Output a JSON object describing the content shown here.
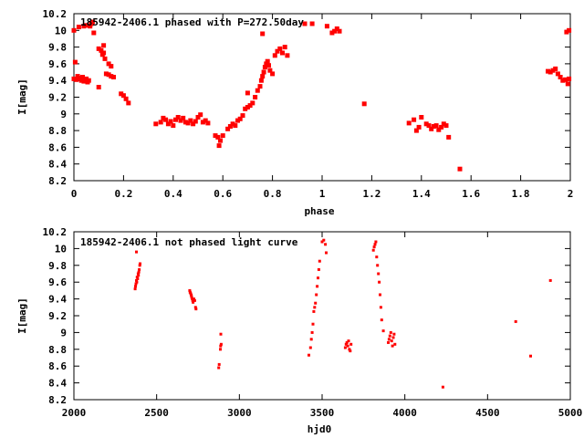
{
  "chart_data": [
    {
      "type": "scatter",
      "title": "185942-2406.1 phased with P=272.50day",
      "xlabel": "phase",
      "ylabel": "I[mag]",
      "xlim": [
        0,
        2
      ],
      "ylim": [
        10.2,
        8.2
      ],
      "y_inverted": true,
      "grid": false,
      "xticks": [
        "0",
        "0.2",
        "0.4",
        "0.6",
        "0.8",
        "1",
        "1.2",
        "1.4",
        "1.6",
        "1.8",
        "2"
      ],
      "yticks": [
        "8.2",
        "8.4",
        "8.6",
        "8.8",
        "9",
        "9.2",
        "9.4",
        "9.6",
        "9.8",
        "10",
        "10.2"
      ],
      "marker_color": "#ff0000",
      "points": [
        [
          0.0,
          9.42
        ],
        [
          0.01,
          9.41
        ],
        [
          0.02,
          9.43
        ],
        [
          0.03,
          9.4
        ],
        [
          0.04,
          9.39
        ],
        [
          0.05,
          9.42
        ],
        [
          0.06,
          9.4
        ],
        [
          0.015,
          9.45
        ],
        [
          0.035,
          9.44
        ],
        [
          0.055,
          9.38
        ],
        [
          0.005,
          9.62
        ],
        [
          0.0,
          10.0
        ],
        [
          0.02,
          10.04
        ],
        [
          0.04,
          10.05
        ],
        [
          0.05,
          10.06
        ],
        [
          0.065,
          10.05
        ],
        [
          0.07,
          10.08
        ],
        [
          0.075,
          10.1
        ],
        [
          0.08,
          9.97
        ],
        [
          0.1,
          9.78
        ],
        [
          0.11,
          9.76
        ],
        [
          0.115,
          9.71
        ],
        [
          0.12,
          9.73
        ],
        [
          0.125,
          9.66
        ],
        [
          0.12,
          9.82
        ],
        [
          0.13,
          9.48
        ],
        [
          0.14,
          9.47
        ],
        [
          0.15,
          9.45
        ],
        [
          0.16,
          9.44
        ],
        [
          0.14,
          9.6
        ],
        [
          0.15,
          9.57
        ],
        [
          0.19,
          9.24
        ],
        [
          0.2,
          9.22
        ],
        [
          0.21,
          9.18
        ],
        [
          0.22,
          9.13
        ],
        [
          0.1,
          9.32
        ],
        [
          0.33,
          8.88
        ],
        [
          0.35,
          8.9
        ],
        [
          0.36,
          8.95
        ],
        [
          0.37,
          8.93
        ],
        [
          0.38,
          8.88
        ],
        [
          0.39,
          8.91
        ],
        [
          0.4,
          8.86
        ],
        [
          0.41,
          8.93
        ],
        [
          0.42,
          8.96
        ],
        [
          0.43,
          8.92
        ],
        [
          0.44,
          8.95
        ],
        [
          0.45,
          8.9
        ],
        [
          0.46,
          8.89
        ],
        [
          0.47,
          8.92
        ],
        [
          0.48,
          8.88
        ],
        [
          0.49,
          8.91
        ],
        [
          0.5,
          8.96
        ],
        [
          0.51,
          8.99
        ],
        [
          0.52,
          8.9
        ],
        [
          0.53,
          8.92
        ],
        [
          0.54,
          8.89
        ],
        [
          0.57,
          8.74
        ],
        [
          0.58,
          8.72
        ],
        [
          0.585,
          8.62
        ],
        [
          0.59,
          8.68
        ],
        [
          0.6,
          8.74
        ],
        [
          0.62,
          8.82
        ],
        [
          0.63,
          8.85
        ],
        [
          0.64,
          8.88
        ],
        [
          0.65,
          8.86
        ],
        [
          0.66,
          8.92
        ],
        [
          0.67,
          8.94
        ],
        [
          0.68,
          8.98
        ],
        [
          0.69,
          9.06
        ],
        [
          0.7,
          9.08
        ],
        [
          0.71,
          9.1
        ],
        [
          0.72,
          9.13
        ],
        [
          0.73,
          9.2
        ],
        [
          0.74,
          9.28
        ],
        [
          0.75,
          9.33
        ],
        [
          0.755,
          9.4
        ],
        [
          0.76,
          9.45
        ],
        [
          0.765,
          9.5
        ],
        [
          0.77,
          9.56
        ],
        [
          0.775,
          9.6
        ],
        [
          0.78,
          9.63
        ],
        [
          0.785,
          9.58
        ],
        [
          0.79,
          9.52
        ],
        [
          0.8,
          9.48
        ],
        [
          0.81,
          9.7
        ],
        [
          0.82,
          9.75
        ],
        [
          0.83,
          9.78
        ],
        [
          0.84,
          9.73
        ],
        [
          0.85,
          9.8
        ],
        [
          0.86,
          9.7
        ],
        [
          0.76,
          9.96
        ],
        [
          0.7,
          9.25
        ],
        [
          0.93,
          10.08
        ],
        [
          0.96,
          10.08
        ],
        [
          1.02,
          10.05
        ],
        [
          1.04,
          9.97
        ],
        [
          1.05,
          9.99
        ],
        [
          1.06,
          10.02
        ],
        [
          1.07,
          9.99
        ],
        [
          1.17,
          9.12
        ],
        [
          1.35,
          8.89
        ],
        [
          1.37,
          8.93
        ],
        [
          1.38,
          8.8
        ],
        [
          1.39,
          8.84
        ],
        [
          1.4,
          8.96
        ],
        [
          1.42,
          8.88
        ],
        [
          1.43,
          8.86
        ],
        [
          1.44,
          8.82
        ],
        [
          1.45,
          8.85
        ],
        [
          1.46,
          8.86
        ],
        [
          1.47,
          8.81
        ],
        [
          1.48,
          8.84
        ],
        [
          1.49,
          8.88
        ],
        [
          1.5,
          8.86
        ],
        [
          1.51,
          8.72
        ],
        [
          1.555,
          8.34
        ],
        [
          1.91,
          9.51
        ],
        [
          1.92,
          9.5
        ],
        [
          1.93,
          9.52
        ],
        [
          1.94,
          9.54
        ],
        [
          1.95,
          9.48
        ],
        [
          1.96,
          9.44
        ],
        [
          1.97,
          9.4
        ],
        [
          1.98,
          9.41
        ],
        [
          1.99,
          9.36
        ],
        [
          1.995,
          9.42
        ],
        [
          1.985,
          9.98
        ],
        [
          1.995,
          10.0
        ]
      ]
    },
    {
      "type": "scatter",
      "title": "185942-2406.1 not phased light curve",
      "xlabel": "hjd0",
      "ylabel": "I[mag]",
      "xlim": [
        2000,
        5000
      ],
      "ylim": [
        10.2,
        8.2
      ],
      "y_inverted": true,
      "grid": false,
      "xticks": [
        "2000",
        "2500",
        "3000",
        "3500",
        "4000",
        "4500",
        "5000"
      ],
      "yticks": [
        "8.2",
        "8.4",
        "8.6",
        "8.8",
        "9",
        "9.2",
        "9.4",
        "9.6",
        "9.8",
        "10",
        "10.2"
      ],
      "marker_color": "#ff0000",
      "points": [
        [
          2370,
          9.52
        ],
        [
          2372,
          9.55
        ],
        [
          2375,
          9.58
        ],
        [
          2378,
          9.62
        ],
        [
          2380,
          9.6
        ],
        [
          2382,
          9.66
        ],
        [
          2385,
          9.64
        ],
        [
          2388,
          9.7
        ],
        [
          2390,
          9.68
        ],
        [
          2392,
          9.72
        ],
        [
          2395,
          9.75
        ],
        [
          2398,
          9.8
        ],
        [
          2400,
          9.82
        ],
        [
          2378,
          9.96
        ],
        [
          2700,
          9.5
        ],
        [
          2702,
          9.48
        ],
        [
          2705,
          9.47
        ],
        [
          2708,
          9.45
        ],
        [
          2710,
          9.44
        ],
        [
          2712,
          9.42
        ],
        [
          2715,
          9.4
        ],
        [
          2718,
          9.38
        ],
        [
          2720,
          9.36
        ],
        [
          2725,
          9.4
        ],
        [
          2730,
          9.38
        ],
        [
          2735,
          9.3
        ],
        [
          2738,
          9.28
        ],
        [
          2875,
          8.58
        ],
        [
          2878,
          8.62
        ],
        [
          2885,
          8.8
        ],
        [
          2887,
          8.84
        ],
        [
          2890,
          8.86
        ],
        [
          2888,
          8.98
        ],
        [
          3420,
          8.73
        ],
        [
          3430,
          8.82
        ],
        [
          3435,
          8.92
        ],
        [
          3440,
          9.0
        ],
        [
          3445,
          9.1
        ],
        [
          3450,
          9.25
        ],
        [
          3455,
          9.3
        ],
        [
          3460,
          9.35
        ],
        [
          3465,
          9.45
        ],
        [
          3470,
          9.55
        ],
        [
          3475,
          9.65
        ],
        [
          3480,
          9.75
        ],
        [
          3485,
          9.85
        ],
        [
          3500,
          10.08
        ],
        [
          3510,
          10.1
        ],
        [
          3520,
          10.05
        ],
        [
          3525,
          9.95
        ],
        [
          3640,
          8.82
        ],
        [
          3645,
          8.86
        ],
        [
          3650,
          8.88
        ],
        [
          3655,
          8.84
        ],
        [
          3660,
          8.9
        ],
        [
          3665,
          8.8
        ],
        [
          3670,
          8.78
        ],
        [
          3675,
          8.86
        ],
        [
          3810,
          9.98
        ],
        [
          3815,
          10.02
        ],
        [
          3820,
          10.05
        ],
        [
          3825,
          10.08
        ],
        [
          3830,
          9.9
        ],
        [
          3835,
          9.8
        ],
        [
          3840,
          9.7
        ],
        [
          3845,
          9.6
        ],
        [
          3850,
          9.45
        ],
        [
          3855,
          9.3
        ],
        [
          3860,
          9.15
        ],
        [
          3870,
          9.02
        ],
        [
          3900,
          8.88
        ],
        [
          3905,
          8.92
        ],
        [
          3910,
          8.96
        ],
        [
          3915,
          9.0
        ],
        [
          3920,
          8.9
        ],
        [
          3925,
          8.84
        ],
        [
          3930,
          8.94
        ],
        [
          3935,
          8.98
        ],
        [
          3940,
          8.86
        ],
        [
          4230,
          8.35
        ],
        [
          4670,
          9.13
        ],
        [
          4760,
          8.72
        ],
        [
          4880,
          9.62
        ]
      ]
    }
  ]
}
